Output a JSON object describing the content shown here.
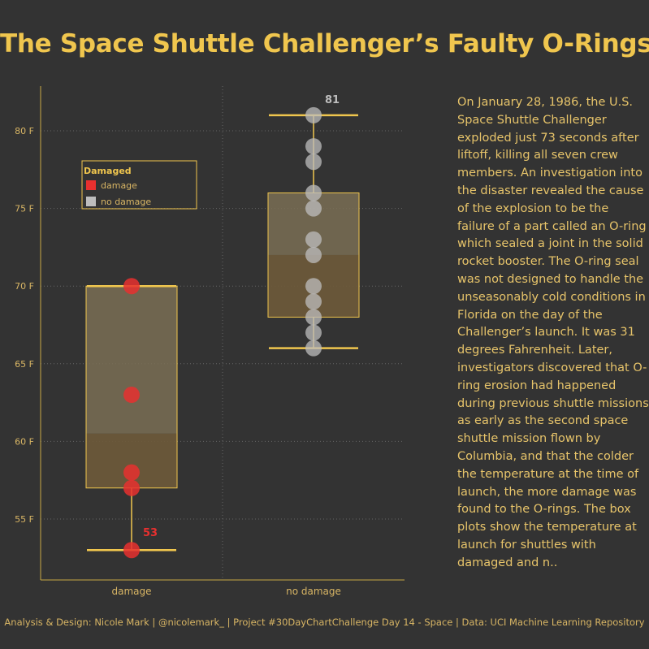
{
  "title": "The Space Shuttle Challenger’s Faulty O-Rings",
  "description": "On January 28, 1986, the U.S. Space Shuttle Challenger exploded just 73 seconds after liftoff, killing all seven crew members. An investigation into the disaster revealed the cause of the explosion to be the failure of a part called an O-ring which sealed a joint in the solid rocket booster. The O-ring seal was not designed to handle the unseasonably cold conditions in Florida on the day of the Challenger’s launch. It was 31 degrees Fahrenheit. Later, investigators discovered that O-ring erosion had happened during previous shuttle missions as early as the second space shuttle mission flown by Columbia, and that the colder the temperature at the time of launch, the more damage was found to the O-rings. The box plots show the temperature at launch for shuttles with damaged and n..",
  "footer": "Analysis & Design: Nicole Mark | @nicolemark_ | Project #30DayChartChallenge Day 14 - Space | Data: UCI Machine Learning Repository",
  "colors": {
    "accent": "#f0c64e",
    "damage": "#e8302f",
    "no_damage": "#bdbdbd",
    "box_upper": "#7a6e55",
    "box_lower": "#6e5a3a"
  },
  "chart_data": {
    "type": "box",
    "categories": [
      "damage",
      "no damage"
    ],
    "y_tick_labels": [
      "55 F",
      "60 F",
      "65 F",
      "70 F",
      "75 F",
      "80 F"
    ],
    "y_ticks": [
      55,
      60,
      65,
      70,
      75,
      80
    ],
    "ylim": [
      50.5,
      83
    ],
    "grid": true,
    "legend": {
      "title": "Damaged",
      "placement": "top-left",
      "items": [
        {
          "label": "damage",
          "color": "#e8302f"
        },
        {
          "label": "no damage",
          "color": "#bdbdbd"
        }
      ]
    },
    "series": [
      {
        "name": "damage",
        "points": [
          70,
          63,
          58,
          57,
          53
        ],
        "box": {
          "min": 53,
          "q1": 57,
          "median": 60.5,
          "q3": 70,
          "max": 70
        },
        "annotation": "53",
        "annotation_value": 53
      },
      {
        "name": "no damage",
        "points": [
          81,
          79,
          78,
          76,
          75,
          73,
          72,
          70,
          69,
          68,
          67,
          66
        ],
        "box": {
          "min": 66,
          "q1": 68,
          "median": 72,
          "q3": 76,
          "max": 81
        },
        "annotation": "81",
        "annotation_value": 81
      }
    ]
  }
}
